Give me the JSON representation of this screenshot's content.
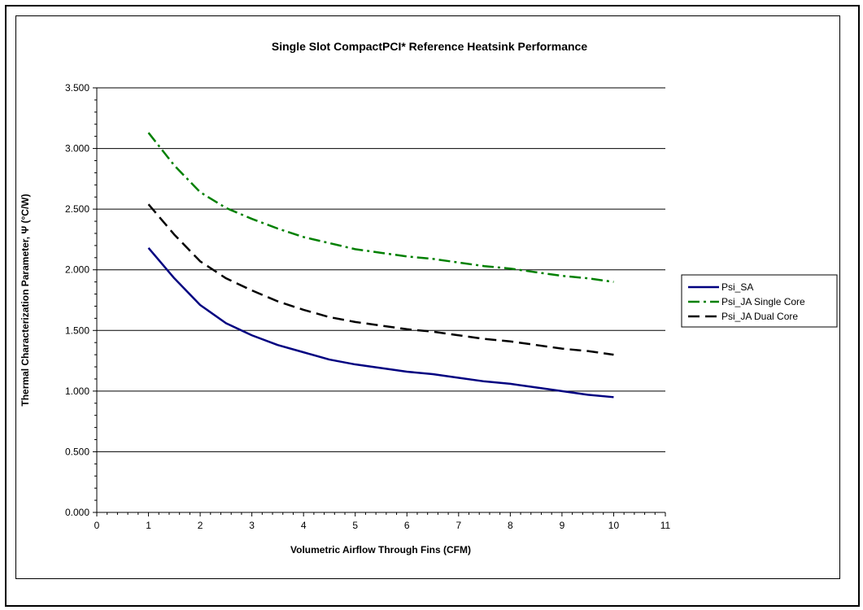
{
  "chart_data": {
    "type": "line",
    "title": "Single Slot CompactPCI* Reference Heatsink Performance",
    "xlabel": "Volumetric Airflow Through Fins (CFM)",
    "ylabel": "Thermal Characterization Parameter, Ψ (°C/W)",
    "xlim": [
      0,
      11
    ],
    "ylim": [
      0,
      3.5
    ],
    "x_ticks": [
      0,
      1,
      2,
      3,
      4,
      5,
      6,
      7,
      8,
      9,
      10,
      11
    ],
    "y_ticks": [
      0,
      0.5,
      1.0,
      1.5,
      2.0,
      2.5,
      3.0,
      3.5
    ],
    "x_tick_labels": [
      "0",
      "1",
      "2",
      "3",
      "4",
      "5",
      "6",
      "7",
      "8",
      "9",
      "10",
      "11"
    ],
    "y_tick_labels": [
      "0.000",
      "0.500",
      "1.000",
      "1.500",
      "2.000",
      "2.500",
      "3.000",
      "3.500"
    ],
    "grid": "horizontal",
    "legend_position": "right",
    "series": [
      {
        "name": "Psi_SA",
        "color": "#000080",
        "dash": "solid",
        "x": [
          1,
          1.5,
          2,
          2.5,
          3,
          3.5,
          4,
          4.5,
          5,
          5.5,
          6,
          6.5,
          7,
          7.5,
          8,
          8.5,
          9,
          9.5,
          10
        ],
        "y": [
          2.18,
          1.93,
          1.71,
          1.56,
          1.46,
          1.38,
          1.32,
          1.26,
          1.22,
          1.19,
          1.16,
          1.14,
          1.11,
          1.08,
          1.06,
          1.03,
          1.0,
          0.97,
          0.95
        ]
      },
      {
        "name": "Psi_JA Single Core",
        "color": "#008000",
        "dash": "dashdot",
        "x": [
          1,
          1.5,
          2,
          2.5,
          3,
          3.5,
          4,
          4.5,
          5,
          5.5,
          6,
          6.5,
          7,
          7.5,
          8,
          8.5,
          9,
          9.5,
          10
        ],
        "y": [
          3.13,
          2.86,
          2.64,
          2.51,
          2.42,
          2.34,
          2.27,
          2.22,
          2.17,
          2.14,
          2.11,
          2.09,
          2.06,
          2.03,
          2.01,
          1.98,
          1.95,
          1.93,
          1.9
        ]
      },
      {
        "name": "Psi_JA Dual Core",
        "color": "#000000",
        "dash": "dash",
        "x": [
          1,
          1.5,
          2,
          2.5,
          3,
          3.5,
          4,
          4.5,
          5,
          5.5,
          6,
          6.5,
          7,
          7.5,
          8,
          8.5,
          9,
          9.5,
          10
        ],
        "y": [
          2.54,
          2.29,
          2.07,
          1.93,
          1.83,
          1.74,
          1.67,
          1.61,
          1.57,
          1.54,
          1.51,
          1.49,
          1.46,
          1.43,
          1.41,
          1.38,
          1.35,
          1.33,
          1.3
        ]
      }
    ]
  }
}
